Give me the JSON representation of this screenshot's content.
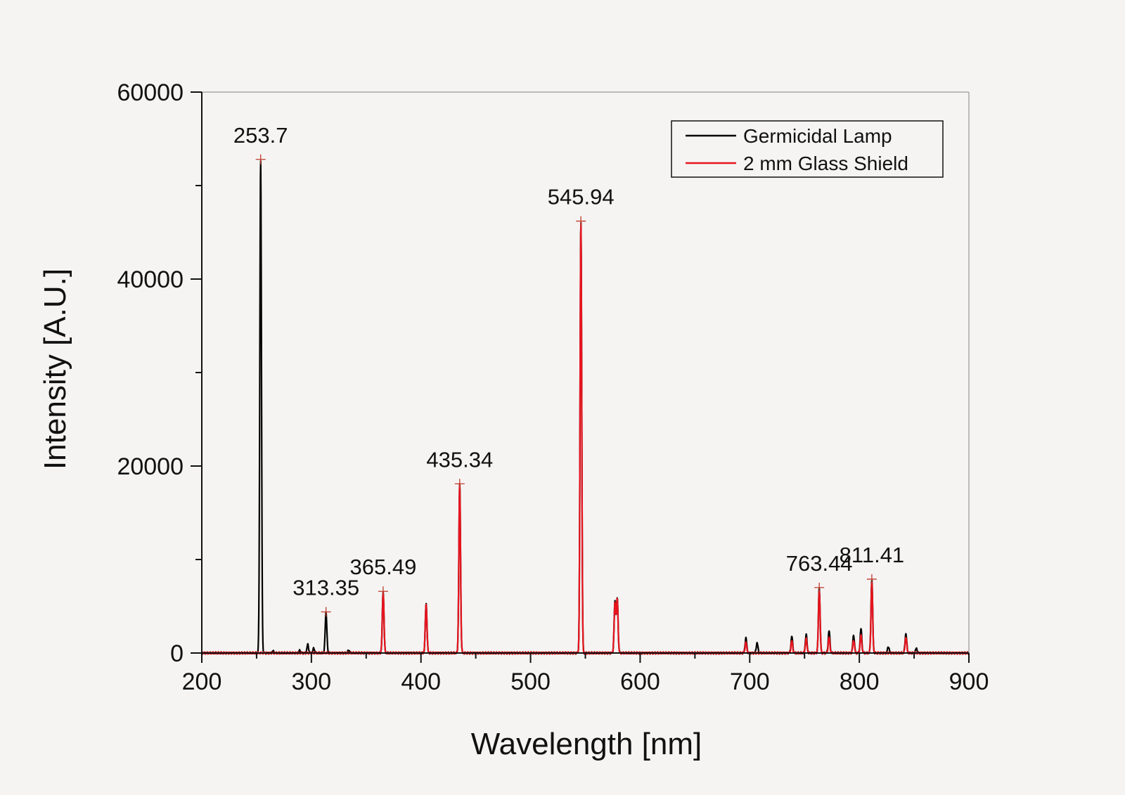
{
  "chart_data": {
    "type": "line",
    "title": "",
    "xlabel": "Wavelength [nm]",
    "ylabel": "Intensity [A.U.]",
    "xlim": [
      200,
      900
    ],
    "ylim": [
      0,
      60000
    ],
    "x_ticks": [
      200,
      300,
      400,
      500,
      600,
      700,
      800,
      900
    ],
    "x_tick_labels": [
      "200",
      "300",
      "400",
      "500",
      "600",
      "700",
      "800",
      "900"
    ],
    "y_ticks": [
      0,
      20000,
      40000,
      60000
    ],
    "y_tick_labels": [
      "0",
      "20000",
      "40000",
      "60000"
    ],
    "legend_position": "top-right",
    "grid": false,
    "series": [
      {
        "name": "Germicidal Lamp",
        "color": "#000000",
        "peaks": [
          {
            "x": 253.7,
            "y": 52800
          },
          {
            "x": 265,
            "y": 200
          },
          {
            "x": 289.4,
            "y": 300
          },
          {
            "x": 296.7,
            "y": 900
          },
          {
            "x": 302.2,
            "y": 500
          },
          {
            "x": 313.35,
            "y": 4400
          },
          {
            "x": 334.1,
            "y": 300
          },
          {
            "x": 365.49,
            "y": 6600
          },
          {
            "x": 404.7,
            "y": 5300
          },
          {
            "x": 435.34,
            "y": 18100
          },
          {
            "x": 545.94,
            "y": 46200
          },
          {
            "x": 577.0,
            "y": 5400
          },
          {
            "x": 579.1,
            "y": 5800
          },
          {
            "x": 696.5,
            "y": 1600
          },
          {
            "x": 706.7,
            "y": 1100
          },
          {
            "x": 738.4,
            "y": 1800
          },
          {
            "x": 751.5,
            "y": 2000
          },
          {
            "x": 763.44,
            "y": 7000
          },
          {
            "x": 772.4,
            "y": 2400
          },
          {
            "x": 794.8,
            "y": 1900
          },
          {
            "x": 801.5,
            "y": 2600
          },
          {
            "x": 811.41,
            "y": 7900
          },
          {
            "x": 826.5,
            "y": 700
          },
          {
            "x": 842.5,
            "y": 2100
          },
          {
            "x": 852.1,
            "y": 500
          }
        ]
      },
      {
        "name": "2 mm Glass Shield",
        "color": "#e8141e",
        "peaks": [
          {
            "x": 365.49,
            "y": 6500
          },
          {
            "x": 404.7,
            "y": 5200
          },
          {
            "x": 435.34,
            "y": 18100
          },
          {
            "x": 545.94,
            "y": 46200
          },
          {
            "x": 577.0,
            "y": 5300
          },
          {
            "x": 579.1,
            "y": 5700
          },
          {
            "x": 696.5,
            "y": 1100
          },
          {
            "x": 738.4,
            "y": 1300
          },
          {
            "x": 751.5,
            "y": 1500
          },
          {
            "x": 763.44,
            "y": 6800
          },
          {
            "x": 772.4,
            "y": 1700
          },
          {
            "x": 794.8,
            "y": 1400
          },
          {
            "x": 801.5,
            "y": 1900
          },
          {
            "x": 811.41,
            "y": 7600
          },
          {
            "x": 842.5,
            "y": 1700
          }
        ]
      }
    ],
    "annotations": [
      {
        "text": "253.7",
        "x": 253.7,
        "y": 52800
      },
      {
        "text": "313.35",
        "x": 313.35,
        "y": 4400
      },
      {
        "text": "365.49",
        "x": 365.49,
        "y": 6600
      },
      {
        "text": "435.34",
        "x": 435.34,
        "y": 18100
      },
      {
        "text": "545.94",
        "x": 545.94,
        "y": 46200
      },
      {
        "text": "763.44",
        "x": 763.44,
        "y": 7000
      },
      {
        "text": "811.41",
        "x": 811.41,
        "y": 7900
      }
    ]
  }
}
